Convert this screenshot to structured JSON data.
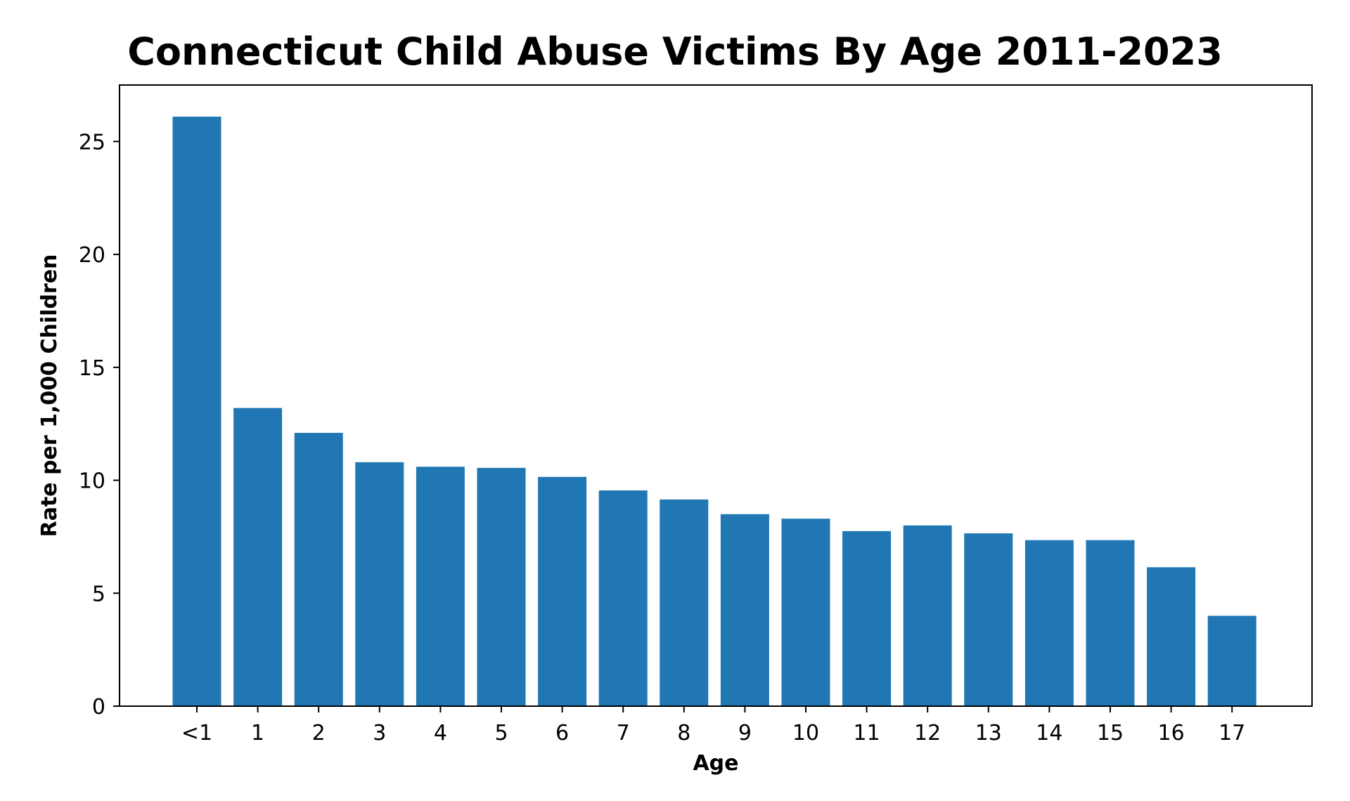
{
  "chart_data": {
    "type": "bar",
    "title": "Connecticut Child Abuse Victims By Age 2011-2023",
    "xlabel": "Age",
    "ylabel": "Rate per 1,000 Children",
    "categories": [
      "<1",
      "1",
      "2",
      "3",
      "4",
      "5",
      "6",
      "7",
      "8",
      "9",
      "10",
      "11",
      "12",
      "13",
      "14",
      "15",
      "16",
      "17"
    ],
    "values": [
      26.1,
      13.2,
      12.1,
      10.8,
      10.6,
      10.55,
      10.15,
      9.55,
      9.15,
      8.5,
      8.3,
      7.75,
      8.0,
      7.65,
      7.35,
      7.35,
      6.15,
      4.0
    ],
    "ylim": [
      0,
      27.5
    ],
    "yticks": [
      0,
      5,
      10,
      15,
      20,
      25
    ],
    "bar_color": "#2077b4",
    "grid": false,
    "legend": "none"
  }
}
